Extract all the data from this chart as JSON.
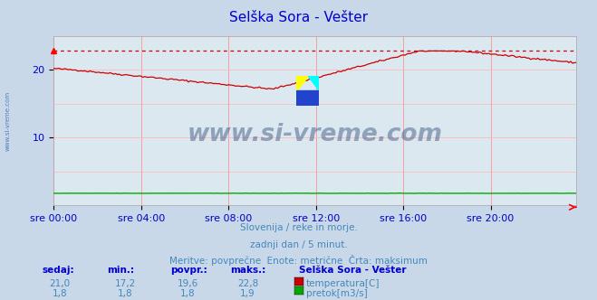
{
  "title": "Selška Sora - Vešter",
  "title_color": "#0000cc",
  "bg_color": "#c8d8e8",
  "plot_bg_color": "#dce8f0",
  "grid_color": "#ff9999",
  "grid_color_h": "#ffbbbb",
  "tick_color": "#0000cc",
  "ylim": [
    0,
    25
  ],
  "ytick_positions": [
    10,
    20
  ],
  "ytick_labels": [
    "10",
    "20"
  ],
  "xtick_labels": [
    "sre 00:00",
    "sre 04:00",
    "sre 08:00",
    "sre 12:00",
    "sre 16:00",
    "sre 20:00"
  ],
  "watermark": "www.si-vreme.com",
  "watermark_color": "#1a3a6e",
  "subtitle1": "Slovenija / reke in morje.",
  "subtitle2": "zadnji dan / 5 minut.",
  "subtitle3": "Meritve: povprečne  Enote: metrične  Črta: maksimum",
  "subtitle_color": "#4488bb",
  "table_headers": [
    "sedaj:",
    "min.:",
    "povpr.:",
    "maks.:"
  ],
  "table_header_color": "#0000cc",
  "station_label": "Selška Sora - Vešter",
  "series": [
    {
      "label": "temperatura[C]",
      "color": "#cc0000",
      "sedaj": "21,0",
      "min": "17,2",
      "povpr": "19,6",
      "maks": "22,8",
      "legend_color": "#cc0000"
    },
    {
      "label": "pretok[m3/s]",
      "color": "#00aa00",
      "sedaj": "1,8",
      "min": "1,8",
      "povpr": "1,8",
      "maks": "1,9",
      "legend_color": "#00aa00"
    }
  ],
  "max_temp": 22.8,
  "n_points": 288
}
